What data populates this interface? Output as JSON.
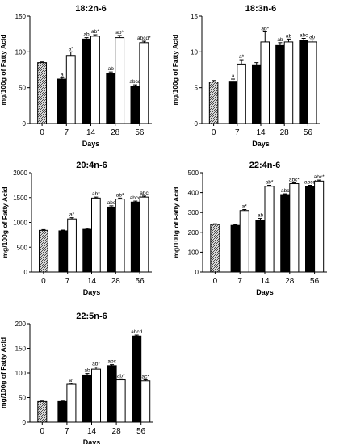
{
  "chart_data": [
    {
      "type": "bar",
      "title": "18:2n-6",
      "xlabel": "Days",
      "ylabel": "mg/100g of Fatty Acid",
      "ylim": [
        0,
        150
      ],
      "yticks": [
        "0",
        "50",
        "100",
        "150"
      ],
      "categories": [
        "0",
        "7",
        "14",
        "28",
        "56"
      ],
      "bars": [
        {
          "day": "0",
          "group": "baseline",
          "value": 85,
          "err": 1,
          "label": ""
        },
        {
          "day": "7",
          "group": "filled",
          "value": 62,
          "err": 2,
          "label": "a"
        },
        {
          "day": "7",
          "group": "open",
          "value": 95,
          "err": 5,
          "label": "a*"
        },
        {
          "day": "14",
          "group": "filled",
          "value": 118,
          "err": 2,
          "label": "ab"
        },
        {
          "day": "14",
          "group": "open",
          "value": 122,
          "err": 2,
          "label": "ab*"
        },
        {
          "day": "28",
          "group": "filled",
          "value": 70,
          "err": 2,
          "label": "ab"
        },
        {
          "day": "28",
          "group": "open",
          "value": 120,
          "err": 3,
          "label": "ab*"
        },
        {
          "day": "56",
          "group": "filled",
          "value": 52,
          "err": 2,
          "label": "abcd"
        },
        {
          "day": "56",
          "group": "open",
          "value": 113,
          "err": 2,
          "label": "abcd*"
        }
      ]
    },
    {
      "type": "bar",
      "title": "18:3n-6",
      "xlabel": "Days",
      "ylabel": "mg/100g of Fatty Acid",
      "ylim": [
        0,
        15
      ],
      "yticks": [
        "0",
        "5",
        "10",
        "15"
      ],
      "categories": [
        "0",
        "7",
        "14",
        "28",
        "56"
      ],
      "bars": [
        {
          "day": "0",
          "group": "baseline",
          "value": 5.8,
          "err": 0.2,
          "label": ""
        },
        {
          "day": "7",
          "group": "filled",
          "value": 5.9,
          "err": 0.3,
          "label": "a"
        },
        {
          "day": "7",
          "group": "open",
          "value": 8.3,
          "err": 0.6,
          "label": "a*"
        },
        {
          "day": "14",
          "group": "filled",
          "value": 8.2,
          "err": 0.3,
          "label": ""
        },
        {
          "day": "14",
          "group": "open",
          "value": 11.4,
          "err": 1.4,
          "label": "ab*"
        },
        {
          "day": "28",
          "group": "filled",
          "value": 10.9,
          "err": 0.4,
          "label": "ab"
        },
        {
          "day": "28",
          "group": "open",
          "value": 11.4,
          "err": 0.4,
          "label": "ab"
        },
        {
          "day": "56",
          "group": "filled",
          "value": 11.6,
          "err": 0.3,
          "label": "abc"
        },
        {
          "day": "56",
          "group": "open",
          "value": 11.4,
          "err": 0.3,
          "label": "ab"
        }
      ]
    },
    {
      "type": "bar",
      "title": "20:4n-6",
      "xlabel": "Days",
      "ylabel": "mg/100g of Fatty Acid",
      "ylim": [
        0,
        2000
      ],
      "yticks": [
        "0",
        "500",
        "1000",
        "1500",
        "2000"
      ],
      "categories": [
        "0",
        "7",
        "14",
        "28",
        "56"
      ],
      "bars": [
        {
          "day": "0",
          "group": "baseline",
          "value": 840,
          "err": 15,
          "label": ""
        },
        {
          "day": "7",
          "group": "filled",
          "value": 830,
          "err": 15,
          "label": ""
        },
        {
          "day": "7",
          "group": "open",
          "value": 1070,
          "err": 25,
          "label": "a*"
        },
        {
          "day": "14",
          "group": "filled",
          "value": 860,
          "err": 20,
          "label": ""
        },
        {
          "day": "14",
          "group": "open",
          "value": 1490,
          "err": 20,
          "label": "ab*"
        },
        {
          "day": "28",
          "group": "filled",
          "value": 1310,
          "err": 25,
          "label": "abc"
        },
        {
          "day": "28",
          "group": "open",
          "value": 1470,
          "err": 20,
          "label": "ab*"
        },
        {
          "day": "56",
          "group": "filled",
          "value": 1410,
          "err": 20,
          "label": "abcd"
        },
        {
          "day": "56",
          "group": "open",
          "value": 1510,
          "err": 20,
          "label": "abc"
        }
      ]
    },
    {
      "type": "bar",
      "title": "22:4n-6",
      "xlabel": "Days",
      "ylabel": "mg/100g of Fatty Acid",
      "ylim": [
        0,
        500
      ],
      "yticks": [
        "0",
        "100",
        "200",
        "300",
        "400",
        "500"
      ],
      "categories": [
        "0",
        "7",
        "14",
        "28",
        "56"
      ],
      "bars": [
        {
          "day": "0",
          "group": "baseline",
          "value": 240,
          "err": 3,
          "label": ""
        },
        {
          "day": "7",
          "group": "filled",
          "value": 235,
          "err": 3,
          "label": ""
        },
        {
          "day": "7",
          "group": "open",
          "value": 310,
          "err": 5,
          "label": "a*"
        },
        {
          "day": "14",
          "group": "filled",
          "value": 262,
          "err": 8,
          "label": "ab"
        },
        {
          "day": "14",
          "group": "open",
          "value": 432,
          "err": 5,
          "label": "ab*"
        },
        {
          "day": "28",
          "group": "filled",
          "value": 390,
          "err": 4,
          "label": "abc"
        },
        {
          "day": "28",
          "group": "open",
          "value": 445,
          "err": 4,
          "label": "abc*"
        },
        {
          "day": "56",
          "group": "filled",
          "value": 432,
          "err": 5,
          "label": "abcd"
        },
        {
          "day": "56",
          "group": "open",
          "value": 458,
          "err": 5,
          "label": "abc*"
        }
      ]
    },
    {
      "type": "bar",
      "title": "22:5n-6",
      "xlabel": "Days",
      "ylabel": "mg/100g of Fatty Acid",
      "ylim": [
        0,
        200
      ],
      "yticks": [
        "0",
        "50",
        "100",
        "150",
        "200"
      ],
      "categories": [
        "0",
        "7",
        "14",
        "28",
        "56"
      ],
      "bars": [
        {
          "day": "0",
          "group": "baseline",
          "value": 42,
          "err": 1,
          "label": ""
        },
        {
          "day": "7",
          "group": "filled",
          "value": 42,
          "err": 1,
          "label": ""
        },
        {
          "day": "7",
          "group": "open",
          "value": 77,
          "err": 2,
          "label": "a*"
        },
        {
          "day": "14",
          "group": "filled",
          "value": 96,
          "err": 3,
          "label": "ab"
        },
        {
          "day": "14",
          "group": "open",
          "value": 108,
          "err": 4,
          "label": "ab*"
        },
        {
          "day": "28",
          "group": "filled",
          "value": 115,
          "err": 2,
          "label": "abc"
        },
        {
          "day": "28",
          "group": "open",
          "value": 86,
          "err": 2,
          "label": "ab*"
        },
        {
          "day": "56",
          "group": "filled",
          "value": 175,
          "err": 2,
          "label": "abcd"
        },
        {
          "day": "56",
          "group": "open",
          "value": 84,
          "err": 2,
          "label": "ac*"
        }
      ]
    }
  ]
}
